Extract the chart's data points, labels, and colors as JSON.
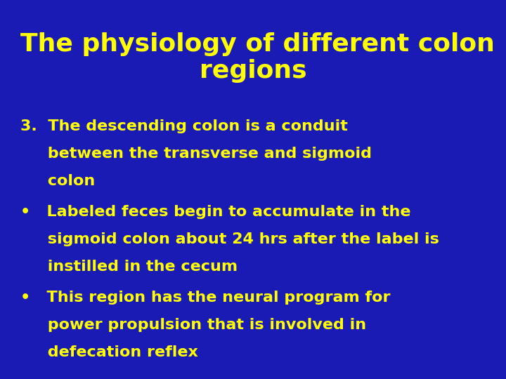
{
  "background_color": "#1a1ab5",
  "title_line1": "The physiology of different colon",
  "title_line2": "regions",
  "title_color": "#ffff00",
  "title_fontsize": 26,
  "title_bold": true,
  "body_color": "#ffff00",
  "body_fontsize": 16,
  "body_bold": false,
  "item3_line1": "3.  The descending colon is a conduit",
  "item3_line2": "     between the transverse and sigmoid",
  "item3_line3": "     colon",
  "bullet1_line1": "•   Labeled feces begin to accumulate in the",
  "bullet1_line2": "     sigmoid colon about 24 hrs after the label is",
  "bullet1_line3": "     instilled in the cecum",
  "bullet2_line1": "•   This region has the neural program for",
  "bullet2_line2": "     power propulsion that is involved in",
  "bullet2_line3": "     defecation reflex",
  "figsize": [
    7.2,
    5.4
  ],
  "dpi": 100
}
